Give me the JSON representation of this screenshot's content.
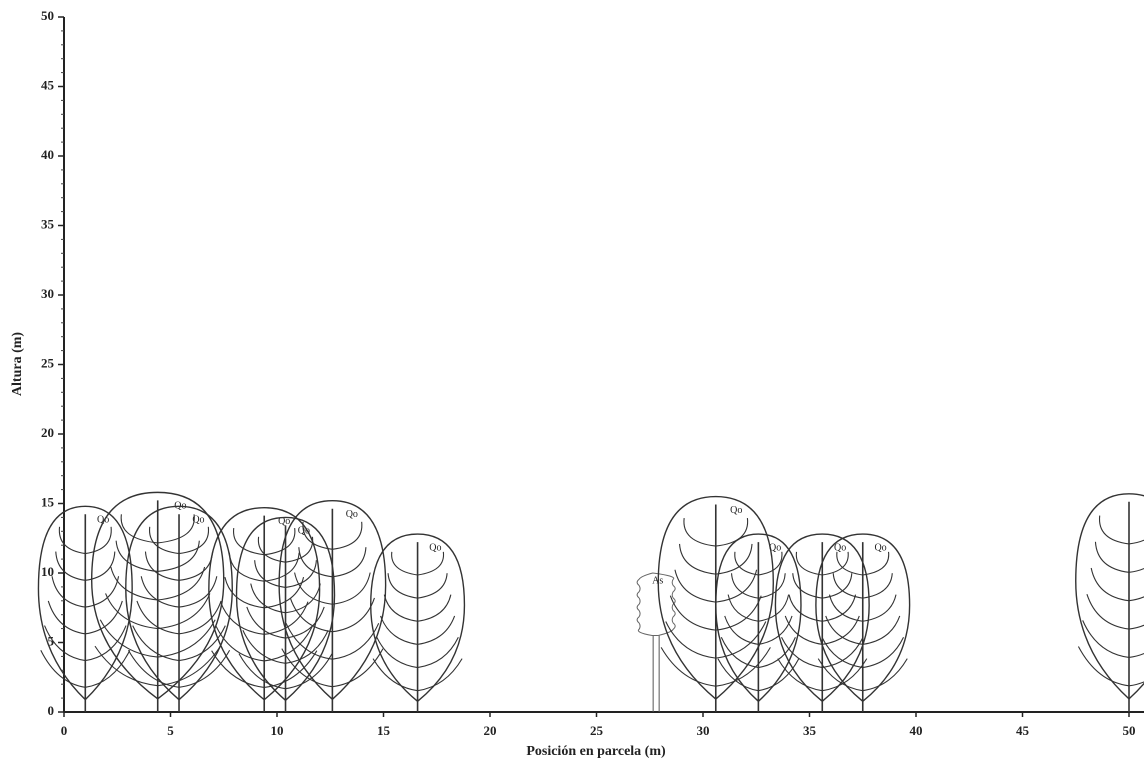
{
  "chart_data": {
    "type": "profile",
    "x_label": "Posición en parcela (m)",
    "y_label": "Altura (m)",
    "xlim": [
      0,
      50
    ],
    "ylim": [
      0,
      50
    ],
    "xticks": [
      0,
      5,
      10,
      15,
      20,
      25,
      30,
      35,
      40,
      45,
      50
    ],
    "yticks": [
      0,
      5,
      10,
      15,
      20,
      25,
      30,
      35,
      40,
      45,
      50
    ],
    "color": "#333333",
    "trees": [
      {
        "x": 1.0,
        "height": 14.8,
        "crown": 4.4,
        "label": "Qo"
      },
      {
        "x": 4.4,
        "height": 15.8,
        "crown": 6.2,
        "label": "Qo"
      },
      {
        "x": 5.4,
        "height": 14.8,
        "crown": 5.0,
        "label": "Qo"
      },
      {
        "x": 9.4,
        "height": 14.7,
        "crown": 5.2,
        "label": "Qo"
      },
      {
        "x": 10.4,
        "height": 14.0,
        "crown": 4.6,
        "label": "Qo"
      },
      {
        "x": 12.6,
        "height": 15.2,
        "crown": 5.0,
        "label": "Qo"
      },
      {
        "x": 16.6,
        "height": 12.8,
        "crown": 4.4,
        "label": "Qo"
      },
      {
        "x": 27.8,
        "height": 10.0,
        "crown": 1.6,
        "label": "As"
      },
      {
        "x": 30.6,
        "height": 15.5,
        "crown": 5.4,
        "label": "Qo"
      },
      {
        "x": 32.6,
        "height": 12.8,
        "crown": 4.0,
        "label": "Qo"
      },
      {
        "x": 35.6,
        "height": 12.8,
        "crown": 4.4,
        "label": "Qo"
      },
      {
        "x": 37.5,
        "height": 12.8,
        "crown": 4.4,
        "label": "Qo"
      },
      {
        "x": 50.0,
        "height": 15.7,
        "crown": 5.0,
        "label": null
      }
    ]
  }
}
